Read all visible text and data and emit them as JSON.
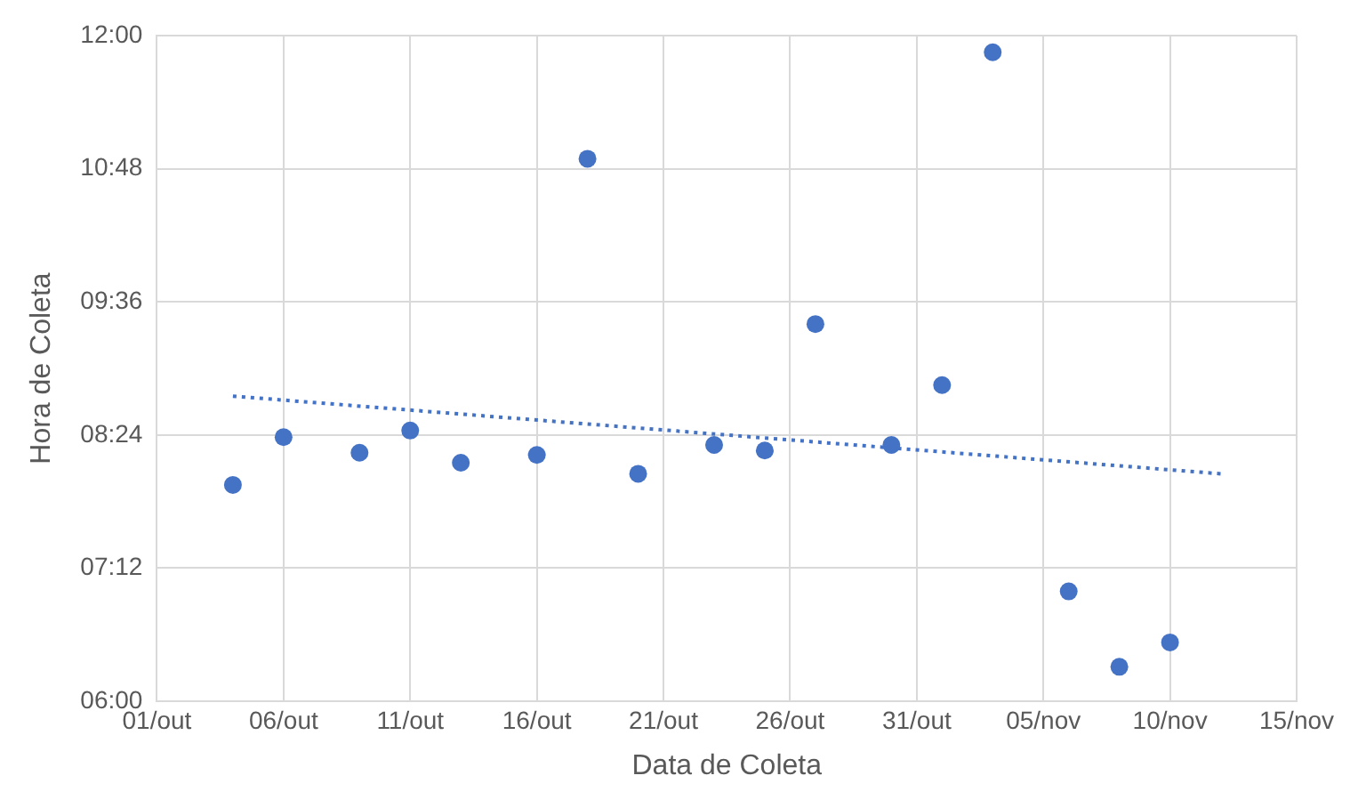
{
  "chart_data": {
    "type": "scatter",
    "xlabel": "Data de Coleta",
    "ylabel": "Hora de Coleta",
    "x": [
      "--10-04",
      "--10-06",
      "--10-09",
      "--10-11",
      "--10-13",
      "--10-16",
      "--10-18",
      "--10-20",
      "--10-23",
      "--10-25",
      "--10-27",
      "--10-30",
      "--11-01",
      "--11-03",
      "--11-06",
      "--11-08",
      "--11-10"
    ],
    "series": [
      {
        "color": "#4472c4",
        "marker": "circle",
        "values": [
          7.95,
          8.38,
          8.24,
          8.44,
          8.15,
          8.22,
          10.89,
          8.05,
          8.31,
          8.26,
          9.4,
          8.31,
          8.85,
          11.85,
          6.99,
          6.31,
          6.53
        ]
      },
      {
        "type": "line",
        "color": "#4472c4",
        "marker": "none",
        "line_style": "dotted",
        "x": [
          "--10-04",
          "--11-12"
        ],
        "values": [
          8.75,
          8.05
        ]
      }
    ],
    "xlim": [
      "--10-01",
      "--11-15"
    ],
    "xticks": [
      {
        "value": "--10-01",
        "label": "01/out"
      },
      {
        "value": "--10-06",
        "label": "06/out"
      },
      {
        "value": "--10-11",
        "label": "11/out"
      },
      {
        "value": "--10-16",
        "label": "16/out"
      },
      {
        "value": "--10-21",
        "label": "21/out"
      },
      {
        "value": "--10-26",
        "label": "26/out"
      },
      {
        "value": "--10-31",
        "label": "31/out"
      },
      {
        "value": "--11-05",
        "label": "05/nov"
      },
      {
        "value": "--11-10",
        "label": "10/nov"
      },
      {
        "value": "--11-15",
        "label": "15/nov"
      }
    ],
    "ylim": [
      6,
      12
    ],
    "yticks": [
      {
        "value": 6,
        "label": "06:00"
      },
      {
        "value": 7.2,
        "label": "07:12"
      },
      {
        "value": 8.4,
        "label": "08:24"
      },
      {
        "value": 9.6,
        "label": "09:36"
      },
      {
        "value": 10.8,
        "label": "10:48"
      },
      {
        "value": 12,
        "label": "12:00"
      }
    ],
    "grid": true
  }
}
